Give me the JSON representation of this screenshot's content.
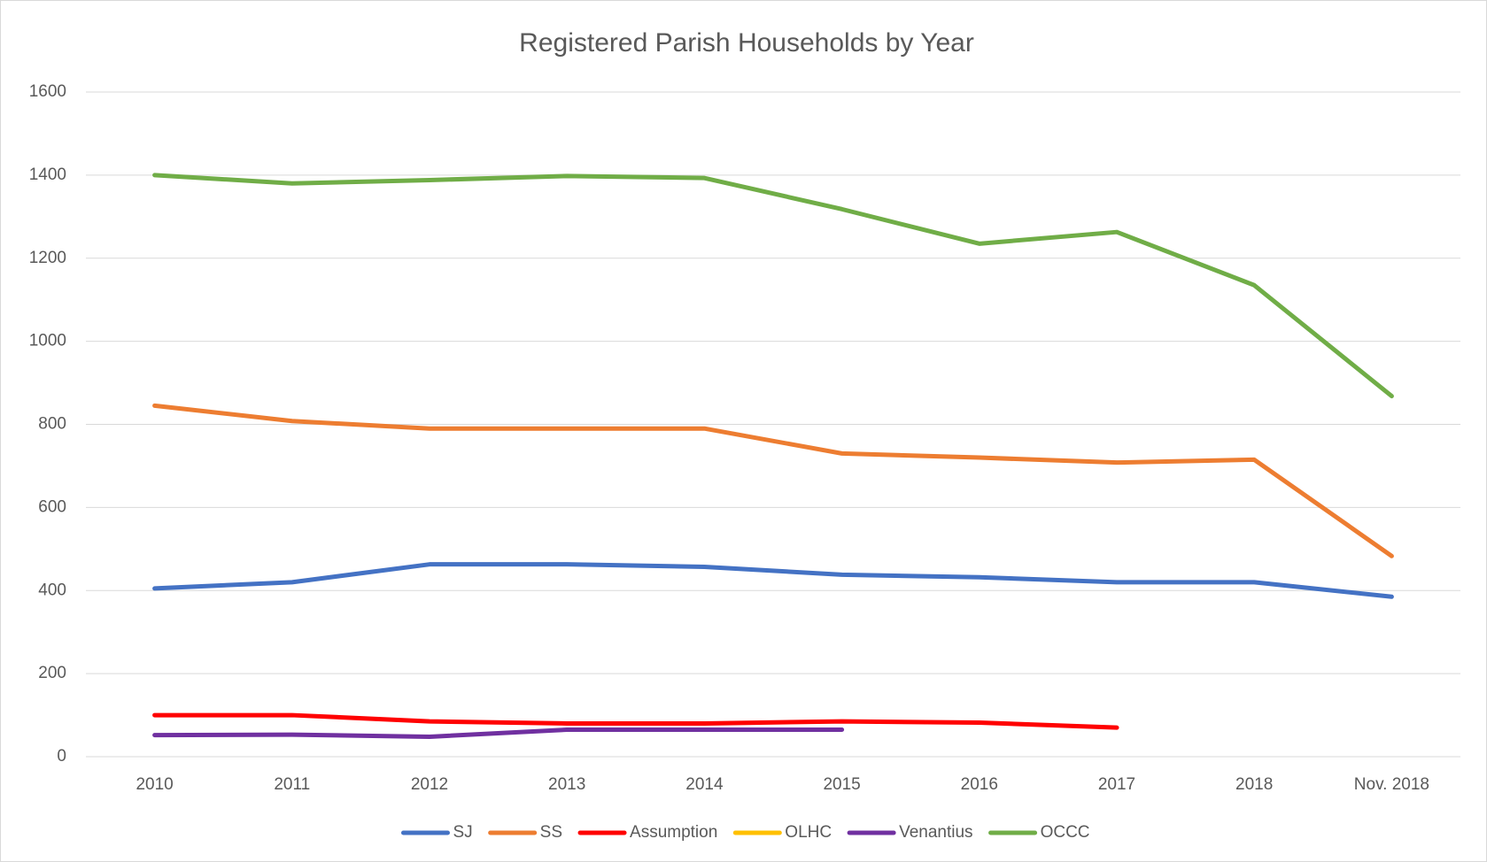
{
  "chart_data": {
    "type": "line",
    "title": "Registered Parish Households by Year",
    "categories": [
      "2010",
      "2011",
      "2012",
      "2013",
      "2014",
      "2015",
      "2016",
      "2017",
      "2018",
      "Nov. 2018"
    ],
    "series": [
      {
        "name": "SJ",
        "color": "#4472c4",
        "values": [
          405,
          420,
          463,
          463,
          457,
          438,
          432,
          420,
          420,
          385
        ]
      },
      {
        "name": "SS",
        "color": "#ed7d31",
        "values": [
          845,
          808,
          790,
          790,
          790,
          730,
          720,
          708,
          715,
          483
        ]
      },
      {
        "name": "Assumption",
        "color": "#ff0000",
        "values": [
          100,
          100,
          85,
          80,
          80,
          85,
          82,
          70,
          null,
          null
        ]
      },
      {
        "name": "OLHC",
        "color": "#ffc000",
        "values": [
          null,
          null,
          null,
          null,
          null,
          null,
          null,
          null,
          null,
          null
        ]
      },
      {
        "name": "Venantius",
        "color": "#7030a0",
        "values": [
          52,
          53,
          48,
          65,
          65,
          65,
          null,
          null,
          null,
          null
        ]
      },
      {
        "name": "OCCC",
        "color": "#70ad47",
        "values": [
          1400,
          1380,
          1388,
          1398,
          1393,
          1318,
          1235,
          1263,
          1135,
          868
        ]
      }
    ],
    "ylim": [
      0,
      1600
    ],
    "yticks": [
      0,
      200,
      400,
      600,
      800,
      1000,
      1200,
      1400,
      1600
    ],
    "grid": true,
    "legend": "bottom"
  }
}
